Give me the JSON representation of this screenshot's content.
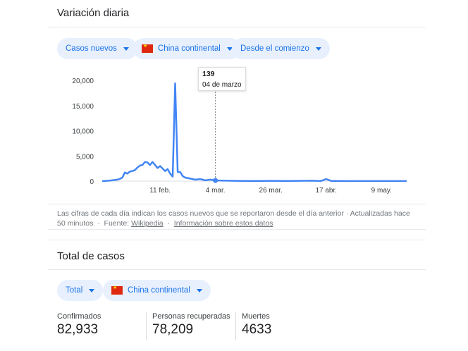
{
  "daily": {
    "title": "Variación diaria",
    "chips": {
      "metric": "Casos nuevos",
      "region": "China continental",
      "range": "Desde el comienzo"
    },
    "tooltip": {
      "value": "139",
      "date": "04 de marzo"
    },
    "footnote": {
      "text": "Las cifras de cada día indican los casos nuevos que se reportaron desde el día anterior · Actualizadas hace 50 minutos",
      "source_label": "Fuente:",
      "source_link": "Wikipedia",
      "info_link": "Información sobre estos datos"
    }
  },
  "totals": {
    "title": "Total de casos",
    "chips": {
      "metric": "Total",
      "region": "China continental"
    },
    "stats": [
      {
        "label": "Confirmados",
        "value": "82,933"
      },
      {
        "label": "Personas recuperadas",
        "value": "78,209"
      },
      {
        "label": "Muertes",
        "value": "4633"
      }
    ]
  },
  "colors": {
    "line": "#4285f4",
    "chip_bg": "#e8f0fe",
    "chip_text": "#1a73e8"
  },
  "chart_data": {
    "type": "line",
    "xlabel": "",
    "ylabel": "",
    "ylim": [
      0,
      20000
    ],
    "y_ticks": [
      "0",
      "5,000",
      "10,000",
      "15,000",
      "20,000"
    ],
    "y_tick_values": [
      0,
      5000,
      10000,
      15000,
      20000
    ],
    "x_ticks": [
      "11 feb.",
      "4 mar.",
      "26 mar.",
      "17 abr.",
      "9 may."
    ],
    "x_tick_days": [
      0,
      22,
      44,
      66,
      88
    ],
    "grid": false,
    "legend": "none",
    "highlight": {
      "day": 22,
      "value": 139
    },
    "series": [
      {
        "days": [
          -23,
          -20,
          -17,
          -16,
          -15,
          -14,
          -13,
          -12,
          -11,
          -10,
          -9,
          -8,
          -7,
          -6,
          -5,
          -4,
          -3,
          -2,
          -1,
          0,
          1,
          2,
          3,
          4,
          5,
          6,
          7,
          8,
          9,
          10,
          12,
          14,
          16,
          18,
          20,
          22,
          25,
          30,
          35,
          40,
          45,
          50,
          55,
          60,
          64,
          66,
          68,
          70,
          75,
          80,
          85,
          90,
          95,
          98
        ],
        "values": [
          0,
          100,
          300,
          450,
          700,
          1700,
          1500,
          1900,
          2000,
          2200,
          2700,
          3100,
          3200,
          3800,
          3700,
          3200,
          3800,
          3200,
          2600,
          3000,
          2500,
          2000,
          2400,
          1500,
          900,
          19400,
          1800,
          1800,
          1000,
          700,
          500,
          300,
          400,
          150,
          300,
          139,
          100,
          60,
          30,
          40,
          60,
          40,
          50,
          80,
          40,
          400,
          40,
          30,
          20,
          20,
          20,
          10,
          10,
          10
        ]
      }
    ]
  }
}
